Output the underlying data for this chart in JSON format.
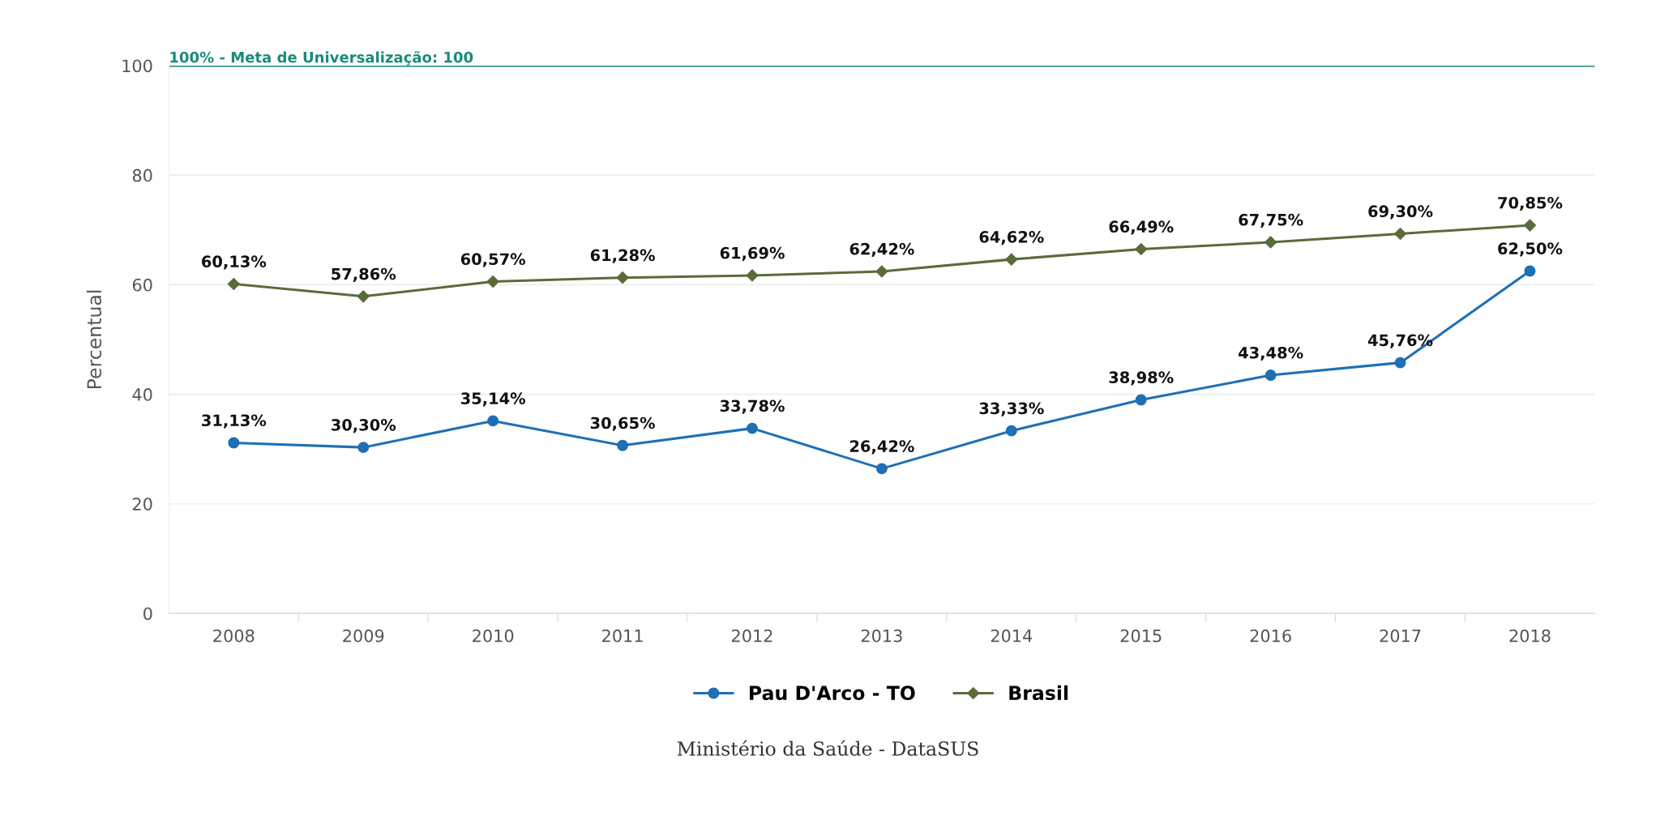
{
  "chart_data": {
    "type": "line",
    "ylabel": "Percentual",
    "categories": [
      "2008",
      "2009",
      "2010",
      "2011",
      "2012",
      "2013",
      "2014",
      "2015",
      "2016",
      "2017",
      "2018"
    ],
    "series": [
      {
        "name": "Pau D'Arco - TO",
        "color": "#1f6fb5",
        "marker": "circle",
        "values": [
          31.13,
          30.3,
          35.14,
          30.65,
          33.78,
          26.42,
          33.33,
          38.98,
          43.48,
          45.76,
          62.5
        ],
        "value_labels": [
          "31,13%",
          "30,30%",
          "35,14%",
          "30,65%",
          "33,78%",
          "26,42%",
          "33,33%",
          "38,98%",
          "43,48%",
          "45,76%",
          "62,50%"
        ]
      },
      {
        "name": "Brasil",
        "color": "#5a6b3a",
        "marker": "diamond",
        "values": [
          60.13,
          57.86,
          60.57,
          61.28,
          61.69,
          62.42,
          64.62,
          66.49,
          67.75,
          69.3,
          70.85
        ],
        "value_labels": [
          "60,13%",
          "57,86%",
          "60,57%",
          "61,28%",
          "61,69%",
          "62,42%",
          "64,62%",
          "66,49%",
          "67,75%",
          "69,30%",
          "70,85%"
        ]
      }
    ],
    "ylim": [
      0,
      100
    ],
    "yticks": [
      0,
      20,
      40,
      60,
      80,
      100
    ],
    "grid": "y",
    "legend": "bottom",
    "ref_lines": [
      {
        "axis": "y",
        "value": 100,
        "label": "100% - Meta de Universalização: 100",
        "color": "#1a8a7a"
      }
    ],
    "annotations": [
      "Ministério da Saúde - DataSUS"
    ]
  }
}
